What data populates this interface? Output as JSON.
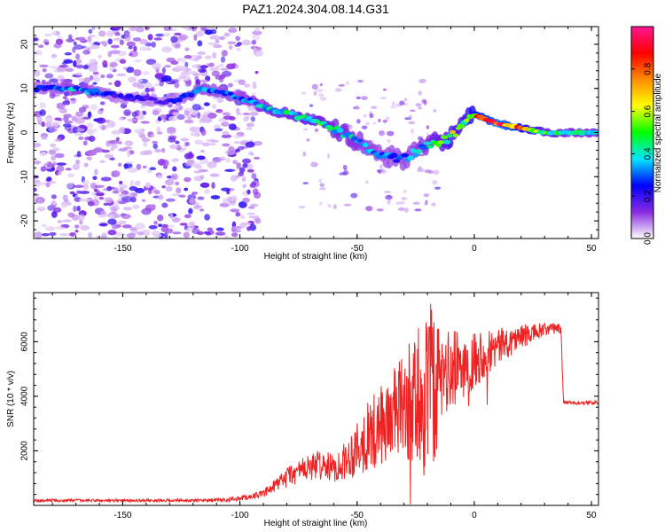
{
  "title": "PAZ1.2024.304.08.14.G31",
  "chart_data": [
    {
      "type": "heatmap",
      "xlabel": "Height of straight line (km)",
      "ylabel": "Frequency (Hz)",
      "xlim": [
        -188,
        53
      ],
      "ylim": [
        -24,
        24
      ],
      "x_ticks": [
        -150,
        -100,
        -50,
        0,
        50
      ],
      "y_ticks": [
        -20,
        -10,
        0,
        10,
        20
      ],
      "colorbar": {
        "label": "Normalized spectral amplitude",
        "range": [
          0,
          1
        ],
        "ticks": [
          "0.0",
          "0.2",
          "0.4",
          "0.6",
          "0.8"
        ],
        "colormap": [
          "#ffffff",
          "#8a2be2",
          "#0000ff",
          "#00e5ff",
          "#00ff00",
          "#ffff00",
          "#ff8c00",
          "#ff0000",
          "#ff1493"
        ]
      },
      "ridge": {
        "x": [
          -188,
          -170,
          -150,
          -130,
          -115,
          -100,
          -85,
          -70,
          -60,
          -50,
          -40,
          -30,
          -20,
          -10,
          -5,
          0,
          10,
          20,
          30,
          40,
          53
        ],
        "y": [
          10,
          10,
          8,
          7,
          10,
          8,
          5,
          3,
          1,
          -2,
          -5,
          -6,
          -3,
          -1,
          2,
          4,
          2,
          1,
          0,
          0,
          0
        ],
        "amplitude": [
          0.2,
          0.35,
          0.2,
          0.2,
          0.3,
          0.3,
          0.4,
          0.45,
          0.4,
          0.35,
          0.3,
          0.3,
          0.35,
          0.55,
          0.5,
          0.7,
          0.9,
          0.7,
          0.45,
          0.4,
          0.4
        ]
      },
      "noise_region": {
        "x": [
          -188,
          -92
        ],
        "y": [
          -24,
          24
        ]
      }
    },
    {
      "type": "line",
      "xlabel": "Height of straight line (km)",
      "ylabel": "SNR (10 * v/v)",
      "xlim": [
        -188,
        53
      ],
      "ylim": [
        0,
        7800
      ],
      "x_ticks": [
        -150,
        -100,
        -50,
        0,
        50
      ],
      "y_ticks": [
        2000,
        4000,
        6000
      ],
      "color": "#ee2222",
      "envelope": {
        "x": [
          -188,
          -120,
          -105,
          -100,
          -95,
          -90,
          -85,
          -80,
          -75,
          -70,
          -65,
          -60,
          -55,
          -50,
          -45,
          -40,
          -35,
          -30,
          -25,
          -22,
          -20,
          -18,
          -15,
          -10,
          -5,
          0,
          5,
          10,
          15,
          20,
          25,
          30,
          35,
          37,
          38,
          40,
          45,
          53
        ],
        "y": [
          180,
          180,
          200,
          260,
          330,
          430,
          700,
          1050,
          1250,
          1400,
          1500,
          1350,
          1650,
          2150,
          2550,
          2900,
          3300,
          3650,
          3900,
          4050,
          4250,
          4350,
          4650,
          4900,
          5150,
          5400,
          5600,
          5800,
          6000,
          6200,
          6300,
          6420,
          6500,
          6480,
          3800,
          3760,
          3760,
          3760
        ],
        "amplitude": [
          50,
          50,
          80,
          90,
          100,
          120,
          250,
          400,
          450,
          500,
          550,
          500,
          700,
          1100,
          1300,
          1450,
          1700,
          1900,
          2600,
          3100,
          3400,
          3000,
          1800,
          1500,
          1300,
          1100,
          900,
          700,
          550,
          450,
          350,
          250,
          200,
          200,
          80,
          70,
          70,
          70
        ]
      }
    }
  ]
}
